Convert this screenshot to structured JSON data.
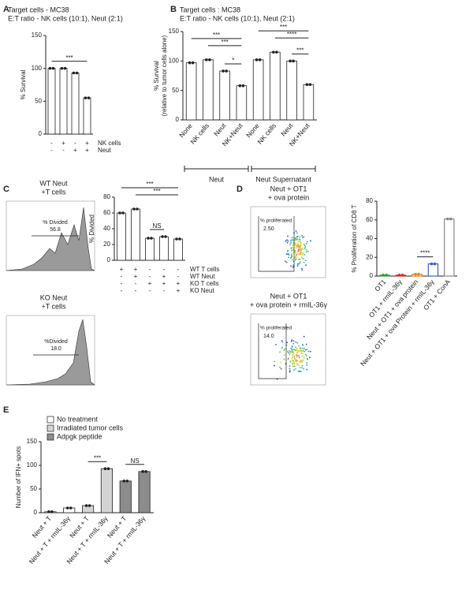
{
  "panels": [
    "A",
    "B",
    "C",
    "D",
    "E"
  ],
  "histograms": [
    {
      "title_lines": [
        "WT Neut",
        "+T cells"
      ],
      "gate_label": "% Divided",
      "gate_value": "56.8"
    },
    {
      "title_lines": [
        "KO Neut",
        "+T cells"
      ],
      "gate_label": "%Divided",
      "gate_value": "18.0"
    }
  ],
  "flow_plots": [
    {
      "title_lines": [
        "Neut + OT1",
        "+ ova protein"
      ],
      "gate_label": "% proliferated",
      "gate_value": "2.50"
    },
    {
      "title_lines": [
        "Neut + OT1",
        "+ ova protein + rmIL-36γ"
      ],
      "gate_label": "% proliferated",
      "gate_value": "14.0"
    }
  ],
  "chart_data": [
    {
      "type": "bar",
      "title": "Target cells - MC38",
      "subtitle": "E:T ratio - NK cells (10:1), Neut (2:1)",
      "ylabel": "% Survival",
      "categories": [
        null,
        null,
        null,
        null
      ],
      "values": [
        100,
        100,
        93,
        55
      ],
      "color": "#ffffff",
      "ylim": [
        0,
        150
      ],
      "yticks": [
        0,
        50,
        100,
        150
      ],
      "rows": [
        {
          "name": "NK cells",
          "values": [
            "-",
            "+",
            "-",
            "+"
          ]
        },
        {
          "name": "Neut",
          "values": [
            "-",
            "-",
            "+",
            "+"
          ]
        }
      ],
      "annotations": [
        "***"
      ]
    },
    {
      "type": "bar",
      "title": "Target cells : MC38",
      "subtitle": "E:T ratio - NK cells (10:1), Neut (2:1)",
      "ylabel": [
        "% Survival",
        "(relative to tumor cells alone)"
      ],
      "categories": [
        "None",
        "NK cells",
        "Neut",
        "NK+Neut",
        "None",
        "NK cells",
        "Neut",
        "NK+Neut"
      ],
      "values": [
        97,
        102,
        83,
        58,
        102,
        115,
        100,
        60
      ],
      "color": "#ffffff",
      "ylim": [
        0,
        150
      ],
      "yticks": [
        0,
        50,
        100,
        150
      ],
      "groups": [
        "Neut",
        "Neut Supernatant"
      ],
      "annotations": [
        "*",
        "***",
        "***",
        "***",
        "****",
        "***"
      ]
    },
    {
      "type": "bar",
      "ylabel": "% Divided",
      "categories": [
        null,
        null,
        null,
        null,
        null
      ],
      "values": [
        60,
        65,
        28,
        30,
        27
      ],
      "color": "#ffffff",
      "ylim": [
        0,
        80
      ],
      "yticks": [
        0,
        20,
        40,
        60,
        80
      ],
      "rows": [
        {
          "name": "WT T cells",
          "values": [
            "+",
            "+",
            "-",
            "-",
            "-"
          ]
        },
        {
          "name": "WT Neut",
          "values": [
            "-",
            "+",
            "-",
            "+",
            "-"
          ]
        },
        {
          "name": "KO T cells",
          "values": [
            "-",
            "-",
            "+",
            "+",
            "+"
          ]
        },
        {
          "name": "KO Neut",
          "values": [
            "-",
            "-",
            "-",
            "-",
            "+"
          ]
        }
      ],
      "annotations": [
        "NS",
        "***",
        "***"
      ]
    },
    {
      "type": "bar",
      "ylabel": "% Proliferation of CD8 T",
      "categories": [
        "OT1",
        "OT1 + rmIL-36γ",
        "Neut + OT1 + ova protein",
        "Neut + OT1 + ova Protein + rmIL-36γ",
        "OT1 + ConA"
      ],
      "values": [
        1,
        1,
        2,
        13,
        61
      ],
      "colors": [
        "#2e9e3e",
        "#d0312d",
        "#e8821e",
        "#3a5fcd",
        "#888888"
      ],
      "ylim": [
        0,
        80
      ],
      "yticks": [
        0,
        20,
        40,
        60,
        80
      ],
      "annotations": [
        "****"
      ]
    },
    {
      "type": "bar",
      "ylabel": "Number of IFN+ spots",
      "categories": [
        "Neut + T",
        "Neut + T + rmIL-36γ",
        "Neut + T",
        "Neut + T + rmIL-36γ",
        "Neut + T",
        "Neut + T + rmIL-36γ"
      ],
      "series": [
        {
          "name": "No treatment",
          "color": "#ffffff",
          "values": [
            2,
            10,
            null,
            null,
            null,
            null
          ]
        },
        {
          "name": "Irradiated tumor cells",
          "color": "#d4d4d4",
          "values": [
            null,
            null,
            15,
            93,
            null,
            null
          ]
        },
        {
          "name": "Adpgk peptide",
          "color": "#8c8c8c",
          "values": [
            null,
            null,
            null,
            null,
            67,
            87
          ]
        }
      ],
      "ylim": [
        0,
        150
      ],
      "yticks": [
        0,
        50,
        100,
        150
      ],
      "annotations": [
        "***",
        "NS"
      ]
    }
  ]
}
